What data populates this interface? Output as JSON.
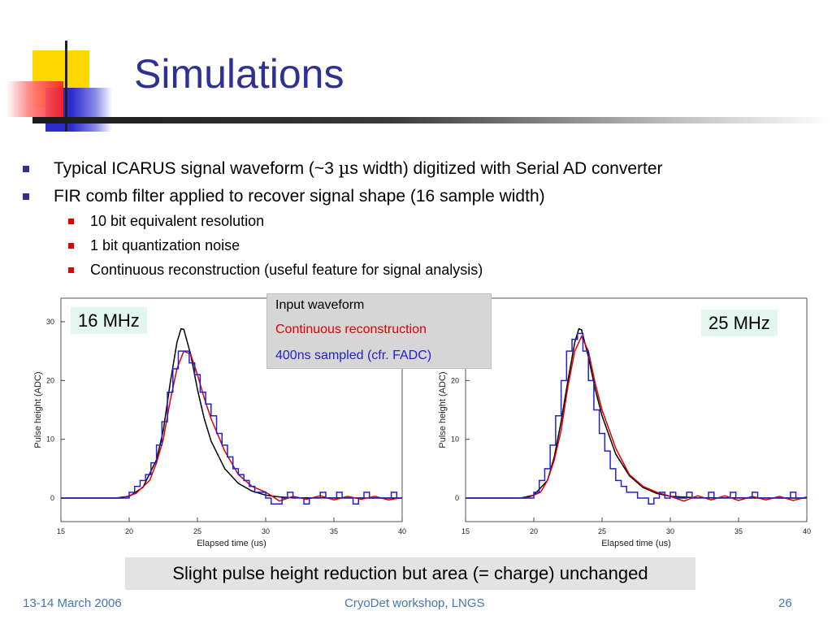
{
  "title": "Simulations",
  "colors": {
    "title": "#2e3191",
    "bullet": "#2e3191",
    "sub_bullet": "#e00000",
    "input_waveform": "#000000",
    "continuous_reconstruction": "#e00000",
    "sampled": "#2222cc"
  },
  "bullets": [
    {
      "before": "Typical ICARUS signal waveform (~3 ",
      "symbol": "µ",
      "after": "s width) digitized with Serial AD converter"
    },
    {
      "text": "FIR comb filter applied to recover signal shape (16 sample width)"
    }
  ],
  "sub_bullets": [
    "10 bit equivalent resolution",
    "1 bit quantization noise",
    "Continuous reconstruction (useful feature for signal analysis)"
  ],
  "legend": {
    "input": "Input waveform",
    "continuous": "Continuous reconstruction",
    "sampled": "400ns sampled (cfr. FADC)"
  },
  "tags": {
    "left": "16 MHz",
    "right": "25 MHz"
  },
  "summary": "Slight pulse height reduction but area (= charge) unchanged",
  "footer": {
    "date": "13-14 March 2006",
    "event": "CryoDet workshop, LNGS",
    "page": "26"
  },
  "chart_data": [
    {
      "type": "line",
      "xlabel": "Elapsed time (us)",
      "ylabel": "Pulse height (ADC)",
      "xlim": [
        15,
        40
      ],
      "ylim": [
        -4,
        34
      ],
      "xticks": [
        15,
        20,
        25,
        30,
        35,
        40
      ],
      "yticks": [
        0,
        10,
        20,
        30
      ],
      "series": [
        {
          "name": "Input waveform",
          "color": "#000000",
          "x": [
            15,
            19,
            20,
            21,
            22,
            22.5,
            23,
            23.5,
            23.8,
            24,
            24.5,
            25,
            25.5,
            26,
            27,
            28,
            29,
            30,
            31,
            32,
            40
          ],
          "y": [
            0,
            0,
            0.3,
            1.8,
            6.5,
            11.5,
            19.5,
            26.5,
            28.8,
            28.7,
            24.5,
            18.5,
            13.5,
            9.7,
            5,
            2.5,
            1.2,
            0.5,
            0.2,
            0.05,
            0
          ]
        },
        {
          "name": "Continuous reconstruction",
          "color": "#e00000",
          "x": [
            15,
            19.5,
            20.5,
            21.5,
            22,
            22.5,
            23,
            23.5,
            24,
            24.5,
            25,
            25.5,
            26,
            27,
            28,
            29,
            30,
            30.5,
            31,
            32,
            33,
            34,
            35,
            36,
            37,
            38,
            39,
            40
          ],
          "y": [
            0,
            0,
            0.8,
            3,
            6,
            10,
            16.5,
            22,
            25,
            24.5,
            21,
            17,
            13.5,
            8,
            4,
            2,
            1,
            0.3,
            -0.5,
            0.3,
            -0.2,
            0.4,
            -0.3,
            0.3,
            -0.2,
            0.3,
            -0.3,
            0.1
          ]
        },
        {
          "name": "400ns sampled (cfr. FADC)",
          "color": "#2222cc",
          "step": true,
          "x": [
            15,
            20.0,
            20.4,
            20.8,
            21.2,
            21.6,
            22.0,
            22.4,
            22.8,
            23.2,
            23.6,
            24.0,
            24.4,
            24.8,
            25.2,
            25.6,
            26.0,
            26.4,
            26.8,
            27.2,
            27.6,
            28.0,
            28.4,
            28.8,
            29.2,
            29.6,
            30.0,
            30.4,
            30.8,
            31.2,
            31.6,
            32.0,
            32.4,
            32.8,
            33.2,
            33.6,
            34.0,
            34.4,
            34.8,
            35.2,
            35.6,
            36.0,
            36.4,
            36.8,
            37.2,
            37.6,
            38.0,
            38.4,
            38.8,
            39.2,
            39.6,
            40
          ],
          "y": [
            0,
            1,
            2,
            3,
            4,
            6,
            9,
            13,
            18,
            22,
            25,
            25,
            23,
            21,
            18,
            16,
            14,
            11,
            9,
            7,
            5,
            4,
            3,
            2,
            1,
            1,
            0,
            -1,
            -1,
            0,
            1,
            0,
            0,
            -1,
            0,
            0,
            1,
            0,
            0,
            1,
            0,
            0,
            -1,
            0,
            1,
            0,
            0,
            0,
            0,
            1,
            0,
            0
          ]
        }
      ]
    },
    {
      "type": "line",
      "xlabel": "Elapsed time (us)",
      "ylabel": "Pulse height (ADC)",
      "xlim": [
        15,
        40
      ],
      "ylim": [
        -4,
        34
      ],
      "xticks": [
        15,
        20,
        25,
        30,
        35,
        40
      ],
      "yticks": [
        0,
        10,
        20,
        30
      ],
      "series": [
        {
          "name": "Input waveform",
          "color": "#000000",
          "x": [
            15,
            19,
            20,
            21,
            21.5,
            22,
            22.5,
            23,
            23.3,
            23.5,
            24,
            24.5,
            25,
            26,
            27,
            28,
            29,
            30,
            32,
            40
          ],
          "y": [
            0,
            0,
            0.5,
            3,
            7,
            13,
            20,
            26.5,
            28.8,
            28.6,
            24,
            18.5,
            14,
            7.5,
            3.8,
            1.8,
            0.8,
            0.3,
            0.05,
            0
          ]
        },
        {
          "name": "Continuous reconstruction",
          "color": "#e00000",
          "x": [
            15,
            19.5,
            20.5,
            21,
            21.5,
            22,
            22.5,
            23,
            23.5,
            24,
            24.5,
            25,
            26,
            27,
            28,
            29,
            30,
            31,
            32,
            33,
            34,
            35,
            36,
            37,
            38,
            39,
            40
          ],
          "y": [
            0,
            0,
            1,
            3,
            6.5,
            11.5,
            19,
            25,
            27.5,
            25,
            19.5,
            15,
            8.5,
            4,
            2,
            1,
            0.3,
            -0.5,
            0.4,
            -0.3,
            0.4,
            -0.4,
            0.3,
            -0.3,
            0.3,
            -0.4,
            0.2
          ]
        },
        {
          "name": "400ns sampled (cfr. FADC)",
          "color": "#2222cc",
          "step": true,
          "x": [
            15,
            20.0,
            20.4,
            20.8,
            21.2,
            21.6,
            22.0,
            22.4,
            22.8,
            23.2,
            23.6,
            24.0,
            24.4,
            24.8,
            25.2,
            25.6,
            26.0,
            26.4,
            26.8,
            27.2,
            27.6,
            28.0,
            28.4,
            28.8,
            29.2,
            29.6,
            30.0,
            30.4,
            30.8,
            31.2,
            31.6,
            32.0,
            32.4,
            32.8,
            33.2,
            33.6,
            34.0,
            34.4,
            34.8,
            35.2,
            35.6,
            36.0,
            36.4,
            36.8,
            37.2,
            37.6,
            38.0,
            38.4,
            38.8,
            39.2,
            39.6,
            40
          ],
          "y": [
            0,
            1,
            3,
            5,
            9,
            14,
            20,
            25,
            27,
            28,
            25,
            20,
            15,
            11,
            8,
            5,
            3,
            2,
            1,
            1,
            0,
            0,
            -1,
            0,
            1,
            0,
            1,
            0,
            0,
            1,
            0,
            0,
            0,
            1,
            0,
            0,
            0,
            1,
            0,
            0,
            0,
            1,
            0,
            0,
            0,
            0,
            0,
            0,
            1,
            0,
            0,
            0
          ]
        }
      ]
    }
  ]
}
